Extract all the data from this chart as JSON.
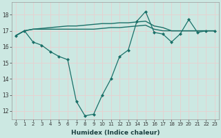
{
  "xlabel": "Humidex (Indice chaleur)",
  "bg_color": "#cce8e2",
  "grid_color": "#e8d0d0",
  "line_color": "#1a7068",
  "xlim_min": -0.5,
  "xlim_max": 23.5,
  "ylim_min": 11.5,
  "ylim_max": 18.8,
  "yticks": [
    12,
    13,
    14,
    15,
    16,
    17,
    18
  ],
  "xticks": [
    0,
    1,
    2,
    3,
    4,
    5,
    6,
    7,
    8,
    9,
    10,
    11,
    12,
    13,
    14,
    15,
    16,
    17,
    18,
    19,
    20,
    21,
    22,
    23
  ],
  "series1_x": [
    0,
    1,
    2,
    3,
    4,
    5,
    6,
    7,
    8,
    9,
    10,
    11,
    12,
    13,
    14,
    15,
    16,
    17,
    18,
    19,
    20,
    21,
    22,
    23
  ],
  "series1_y": [
    16.7,
    17.0,
    17.1,
    17.1,
    17.1,
    17.1,
    17.1,
    17.1,
    17.1,
    17.1,
    17.15,
    17.2,
    17.2,
    17.25,
    17.3,
    17.35,
    17.1,
    17.0,
    17.0,
    17.0,
    17.0,
    17.0,
    17.0,
    17.0
  ],
  "series2_x": [
    0,
    1,
    2,
    3,
    4,
    5,
    6,
    7,
    8,
    9,
    10,
    11,
    12,
    13,
    14,
    15,
    16,
    17,
    18,
    19,
    20,
    21,
    22,
    23
  ],
  "series2_y": [
    16.7,
    17.0,
    17.1,
    17.15,
    17.2,
    17.25,
    17.3,
    17.3,
    17.35,
    17.4,
    17.45,
    17.45,
    17.5,
    17.5,
    17.55,
    17.6,
    17.3,
    17.2,
    17.0,
    17.0,
    17.0,
    17.0,
    17.0,
    17.0
  ],
  "series3_x": [
    0,
    1,
    2,
    3,
    4,
    5,
    6,
    7,
    8,
    9,
    10,
    11,
    12,
    13,
    14,
    15,
    16,
    17,
    18,
    19,
    20,
    21,
    22,
    23
  ],
  "series3_y": [
    16.7,
    17.0,
    16.3,
    16.1,
    15.7,
    15.4,
    15.2,
    12.6,
    11.7,
    11.8,
    13.0,
    14.0,
    15.4,
    15.8,
    17.6,
    18.2,
    16.9,
    16.8,
    16.3,
    16.8,
    17.7,
    16.9,
    17.0,
    17.0
  ]
}
